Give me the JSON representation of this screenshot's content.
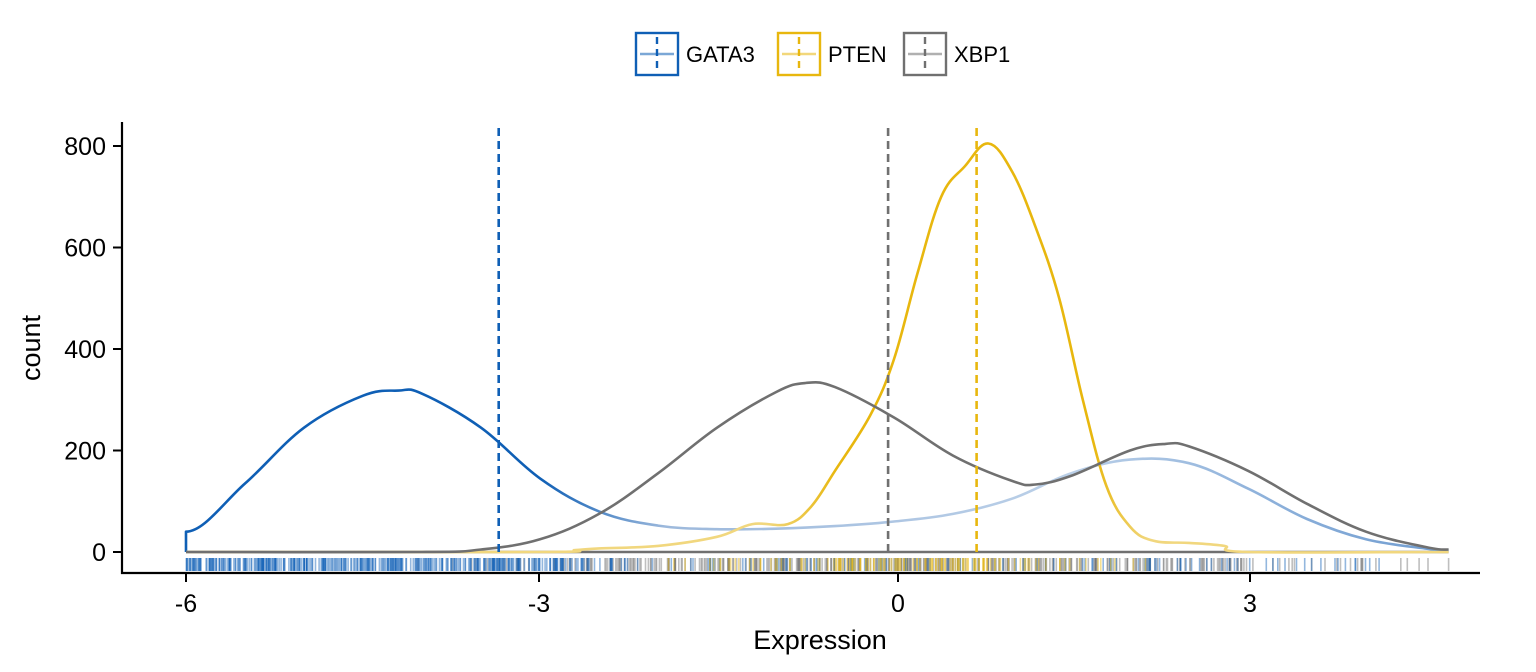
{
  "chart_data": {
    "type": "density",
    "xlabel": "Expression",
    "ylabel": "count",
    "xlim": [
      -6.6,
      5.2
    ],
    "ylim": [
      -40,
      840
    ],
    "x_ticks": [
      -6,
      -3,
      0,
      3
    ],
    "x_tick_labels": [
      "-6",
      "-3",
      "0",
      "3"
    ],
    "y_ticks": [
      0,
      200,
      400,
      600,
      800
    ],
    "y_tick_labels": [
      "0",
      "200",
      "400",
      "600",
      "800"
    ],
    "legend": {
      "position": "top",
      "entries": [
        "GATA3",
        "PTEN",
        "XBP1"
      ]
    },
    "colors": {
      "GATA3": "#0F5FB5",
      "PTEN": "#E8B70E",
      "XBP1": "#707070"
    },
    "series": [
      {
        "name": "GATA3",
        "mean": -3.35,
        "x": [
          -6.0,
          -6.0,
          -5.5,
          -5.0,
          -4.5,
          -4.2,
          -4.0,
          -3.5,
          -3.0,
          -2.5,
          -2.0,
          -1.5,
          -1.0,
          -0.5,
          0.0,
          0.5,
          1.0,
          1.5,
          2.0,
          2.5,
          3.0,
          3.5,
          4.0,
          4.5,
          4.7
        ],
        "y": [
          0,
          40,
          135,
          245,
          308,
          318,
          312,
          245,
          145,
          80,
          52,
          45,
          46,
          51,
          60,
          75,
          105,
          155,
          182,
          175,
          125,
          65,
          25,
          7,
          3
        ]
      },
      {
        "name": "PTEN",
        "mean": 0.7,
        "x": [
          -6.0,
          -3.0,
          -2.7,
          -2.5,
          -2.0,
          -1.5,
          -1.2,
          -0.9,
          -0.7,
          -0.5,
          -0.2,
          0.0,
          0.2,
          0.4,
          0.6,
          0.8,
          1.0,
          1.2,
          1.4,
          1.6,
          1.8,
          2.0,
          2.2,
          2.5,
          2.8,
          3.0,
          4.7
        ],
        "y": [
          0,
          0,
          4,
          7,
          12,
          30,
          55,
          55,
          90,
          160,
          270,
          380,
          550,
          700,
          760,
          805,
          750,
          640,
          500,
          300,
          130,
          50,
          22,
          18,
          12,
          0,
          0
        ]
      },
      {
        "name": "XBP1",
        "mean": -0.05,
        "x": [
          -6.0,
          -4.0,
          -3.5,
          -3.0,
          -2.5,
          -2.0,
          -1.5,
          -1.0,
          -0.75,
          -0.5,
          0.0,
          0.5,
          1.0,
          1.2,
          1.5,
          2.0,
          2.3,
          2.5,
          3.0,
          3.5,
          4.0,
          4.5,
          4.7
        ],
        "y": [
          0,
          0,
          5,
          25,
          75,
          155,
          245,
          315,
          333,
          325,
          265,
          190,
          140,
          133,
          150,
          200,
          213,
          208,
          160,
          95,
          40,
          10,
          5
        ]
      }
    ],
    "rug": {
      "GATA3": {
        "from": -6.0,
        "to": 4.2
      },
      "PTEN": {
        "from": -2.7,
        "to": 2.8
      },
      "XBP1": {
        "from": -4.2,
        "to": 4.7
      }
    }
  }
}
